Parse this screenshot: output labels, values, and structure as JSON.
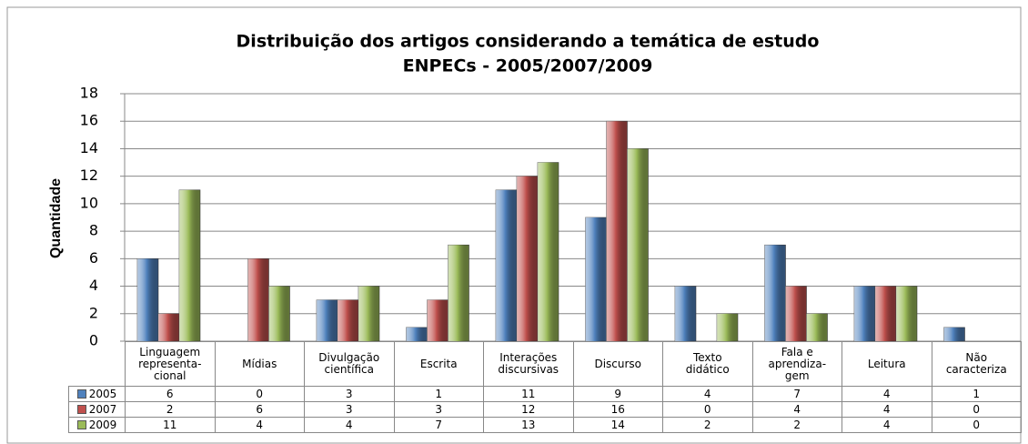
{
  "chart_data": {
    "type": "bar",
    "title": "Distribuição dos artigos considerando a temática de estudo",
    "subtitle": "ENPECs - 2005/2007/2009",
    "y_label": "Quantidade",
    "categories": [
      "Linguagem\nrepresenta-\ncional",
      "Mídias",
      "Divulgação\ncientífica",
      "Escrita",
      "Interações\ndiscursivas",
      "Discurso",
      "Texto\ndidático",
      "Fala e\naprendiza-\ngem",
      "Leitura",
      "Não\ncaracteriza"
    ],
    "series": [
      {
        "name": "2005",
        "color": "#4f81bd",
        "values": [
          6,
          0,
          3,
          1,
          11,
          9,
          4,
          7,
          4,
          1
        ]
      },
      {
        "name": "2007",
        "color": "#c0504d",
        "values": [
          2,
          6,
          3,
          3,
          12,
          16,
          0,
          4,
          4,
          0
        ]
      },
      {
        "name": "2009",
        "color": "#9bbb59",
        "values": [
          11,
          4,
          4,
          7,
          13,
          14,
          2,
          2,
          4,
          0
        ]
      }
    ],
    "ylim": [
      0,
      18
    ],
    "yticks": [
      0,
      2,
      4,
      6,
      8,
      10,
      12,
      14,
      16,
      18
    ],
    "grid": true
  }
}
